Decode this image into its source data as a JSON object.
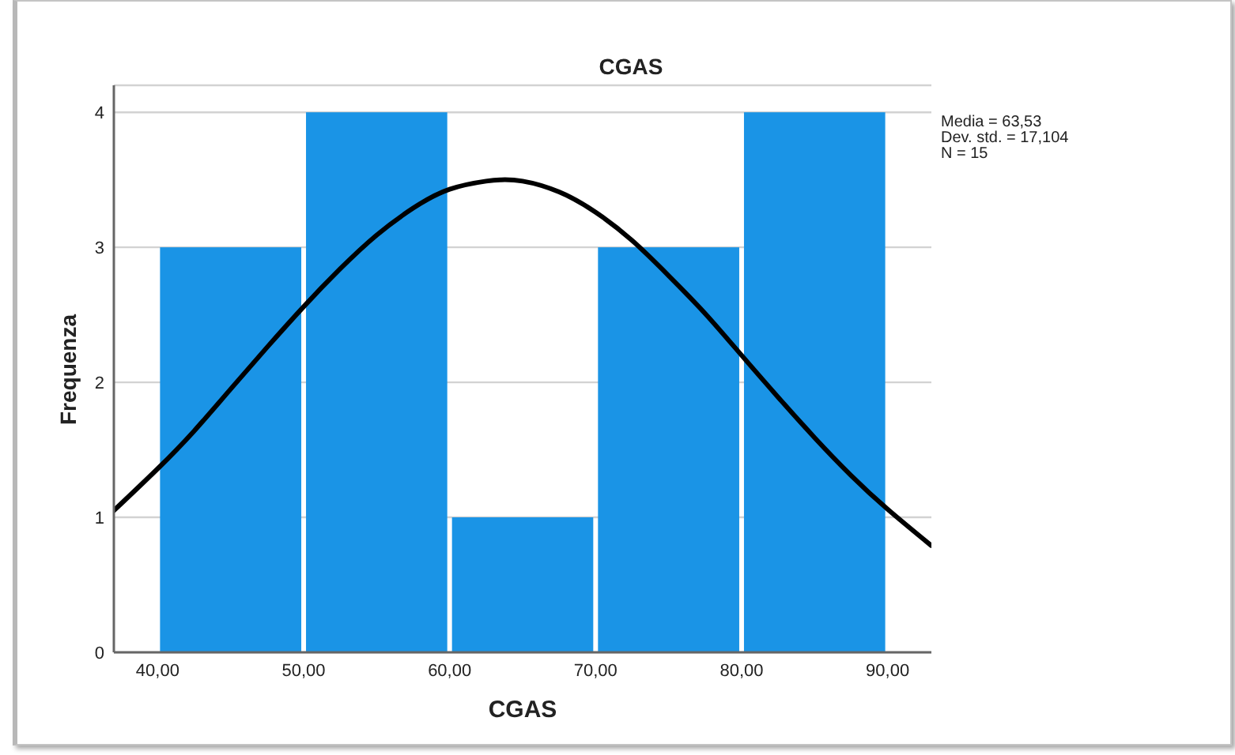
{
  "chart_data": {
    "type": "histogram",
    "title": "CGAS",
    "xlabel": "CGAS",
    "ylabel": "Frequenza",
    "bins": [
      40,
      50,
      60,
      70,
      80,
      90
    ],
    "values": [
      3,
      4,
      1,
      3,
      4
    ],
    "color": "#1a94e6",
    "series": [
      {
        "type": "line",
        "color": "#000000",
        "x": [
          37,
          40,
          42.5,
          45,
          47.5,
          50,
          52.5,
          55,
          57.5,
          60,
          62.5,
          63.5,
          65,
          67.5,
          70,
          72.5,
          75,
          77.5,
          80,
          82.5,
          85,
          87.5,
          90,
          93
        ],
        "values": [
          1.05,
          1.36,
          1.64,
          1.95,
          2.26,
          2.56,
          2.84,
          3.09,
          3.29,
          3.43,
          3.49,
          3.5,
          3.49,
          3.41,
          3.26,
          3.05,
          2.79,
          2.51,
          2.2,
          1.89,
          1.59,
          1.31,
          1.06,
          0.79
        ]
      }
    ],
    "xlim": [
      37,
      93
    ],
    "ylim": [
      0,
      4.2
    ],
    "xticks": [
      {
        "value": 40,
        "label": "40,00"
      },
      {
        "value": 50,
        "label": "50,00"
      },
      {
        "value": 60,
        "label": "60,00"
      },
      {
        "value": 70,
        "label": "70,00"
      },
      {
        "value": 80,
        "label": "80,00"
      },
      {
        "value": 90,
        "label": "90,00"
      }
    ],
    "yticks": [
      0,
      1,
      2,
      3,
      4
    ],
    "grid": "y",
    "annotations": [
      "Media = 63,53",
      "Dev. std. = 17,104",
      "N = 15"
    ]
  }
}
